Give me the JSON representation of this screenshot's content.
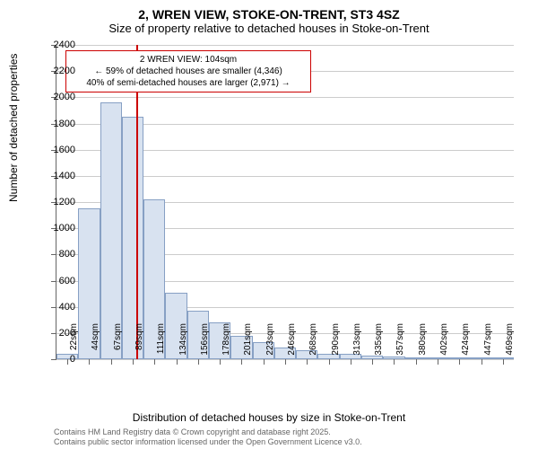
{
  "title": "2, WREN VIEW, STOKE-ON-TRENT, ST3 4SZ",
  "subtitle": "Size of property relative to detached houses in Stoke-on-Trent",
  "y_axis_title": "Number of detached properties",
  "x_axis_title": "Distribution of detached houses by size in Stoke-on-Trent",
  "chart": {
    "type": "histogram",
    "ylim": [
      0,
      2400
    ],
    "ytick_step": 200,
    "y_ticks": [
      0,
      200,
      400,
      600,
      800,
      1000,
      1200,
      1400,
      1600,
      1800,
      2000,
      2200,
      2400
    ],
    "categories": [
      "22sqm",
      "44sqm",
      "67sqm",
      "89sqm",
      "111sqm",
      "134sqm",
      "156sqm",
      "178sqm",
      "201sqm",
      "223sqm",
      "246sqm",
      "268sqm",
      "290sqm",
      "313sqm",
      "335sqm",
      "357sqm",
      "380sqm",
      "402sqm",
      "424sqm",
      "447sqm",
      "469sqm"
    ],
    "values": [
      40,
      1150,
      1960,
      1850,
      1220,
      510,
      370,
      280,
      180,
      130,
      90,
      70,
      40,
      40,
      30,
      20,
      15,
      10,
      10,
      10,
      8
    ],
    "bar_fill_color": "#d8e2f0",
    "bar_border_color": "#87a0c4",
    "background_color": "#ffffff",
    "grid_color": "#cccccc",
    "axis_color": "#666666",
    "marker": {
      "position_category_index": 3.68,
      "color": "#cc0000",
      "width": 2
    },
    "annotation": {
      "line1": "2 WREN VIEW: 104sqm",
      "line2": "← 59% of detached houses are smaller (4,346)",
      "line3": "40% of semi-detached houses are larger (2,971) →",
      "border_color": "#cc0000",
      "background": "#ffffff"
    }
  },
  "footer": {
    "line1": "Contains HM Land Registry data © Crown copyright and database right 2025.",
    "line2": "Contains public sector information licensed under the Open Government Licence v3.0."
  },
  "fonts": {
    "title_size": 14,
    "subtitle_size": 13,
    "axis_title_size": 12,
    "tick_label_size": 11,
    "annotation_size": 10,
    "footer_size": 9
  }
}
